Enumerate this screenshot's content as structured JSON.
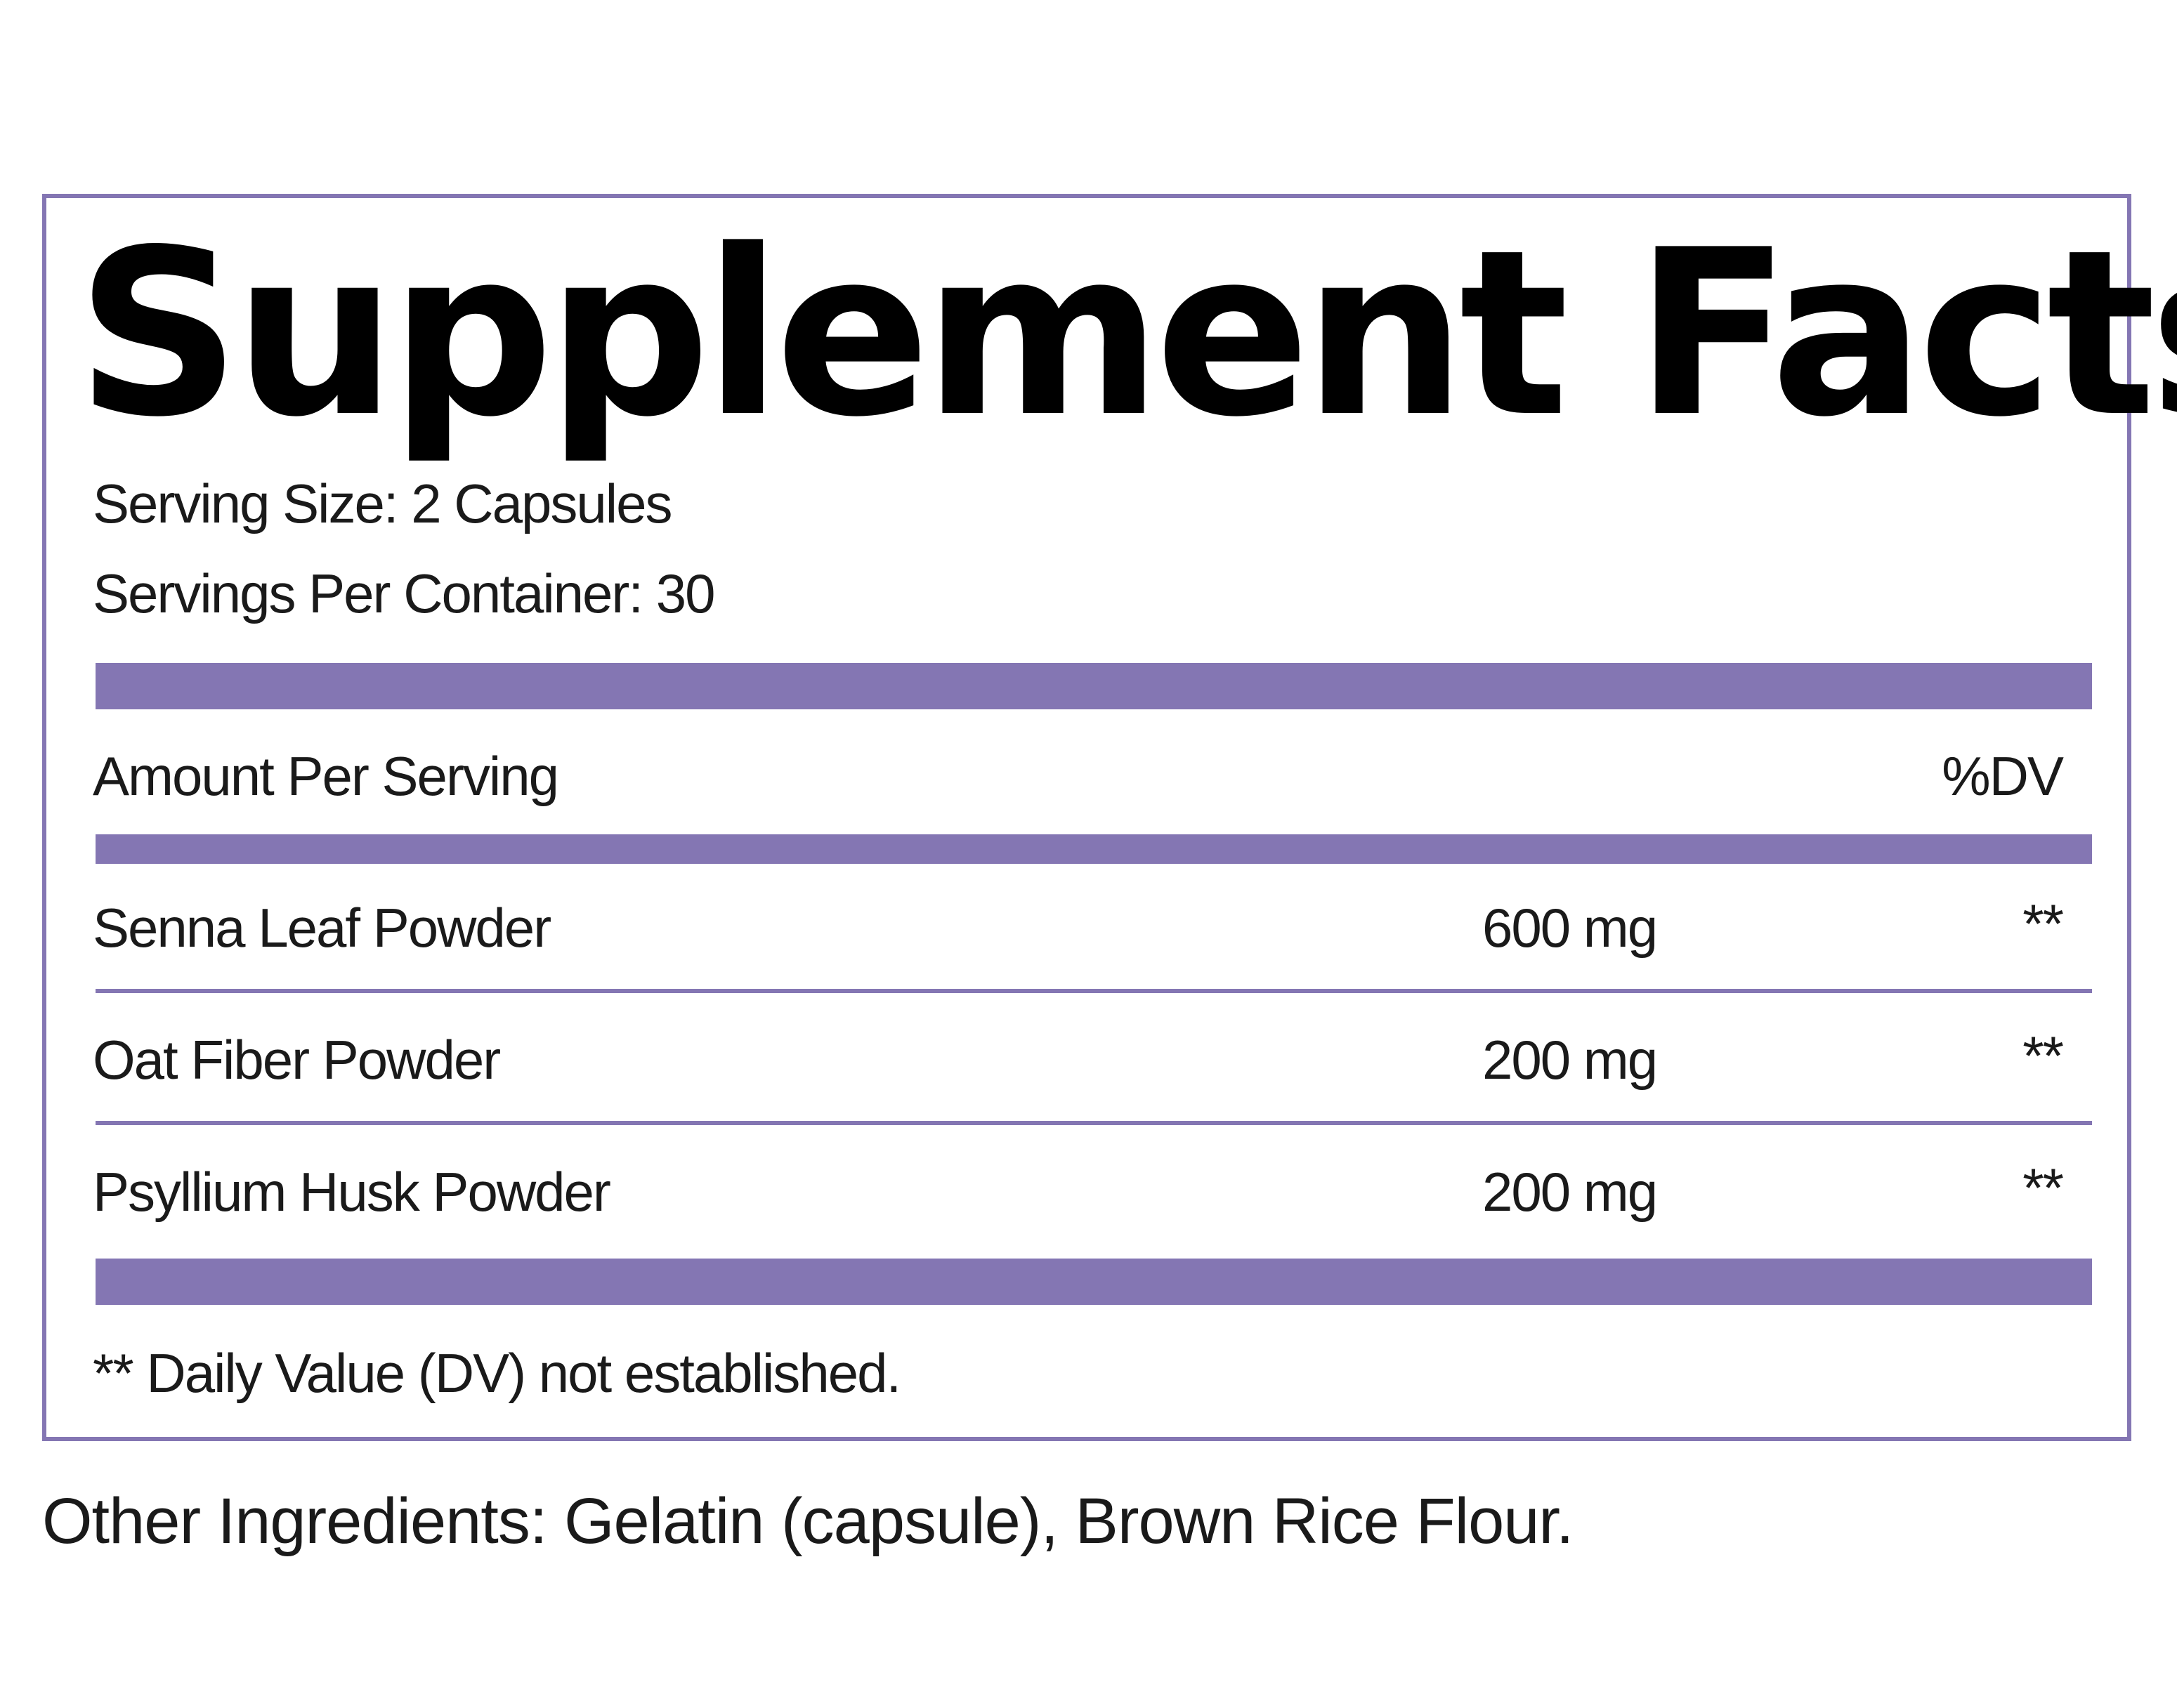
{
  "label": {
    "title": "Supplement Facts",
    "serving_size": "Serving Size: 2 Capsules",
    "servings_per_container": "Servings Per Container: 30",
    "header": {
      "amount_label": "Amount Per Serving",
      "dv_label": "%DV"
    },
    "ingredients": [
      {
        "name": "Senna Leaf Powder",
        "amount": "600 mg",
        "dv": "**"
      },
      {
        "name": "Oat Fiber Powder",
        "amount": "200 mg",
        "dv": "**"
      },
      {
        "name": "Psyllium Husk Powder",
        "amount": "200 mg",
        "dv": "**"
      }
    ],
    "footnote": "** Daily Value (DV) not established."
  },
  "other_ingredients": "Other Ingredients: Gelatin (capsule), Brown Rice Flour.",
  "colors": {
    "accent": "#8476b3",
    "text": "#1a1a1a",
    "title": "#000000",
    "background": "#ffffff"
  }
}
